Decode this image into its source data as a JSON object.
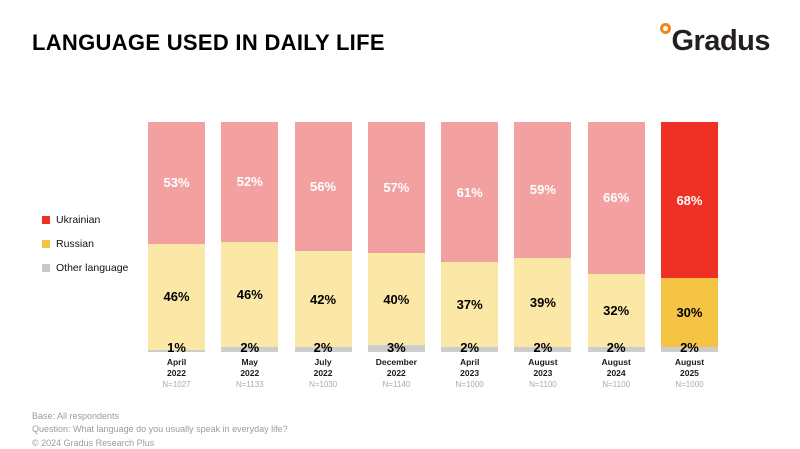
{
  "header": {
    "title": "LANGUAGE USED IN DAILY LIFE",
    "logo_text": "Gradus"
  },
  "legend": {
    "items": [
      {
        "label": "Ukrainian",
        "color": "#EE3124"
      },
      {
        "label": "Russian",
        "color": "#F6C444"
      },
      {
        "label": "Other language",
        "color": "#C8C8C8"
      }
    ]
  },
  "chart_data": {
    "type": "bar",
    "stacked": true,
    "unit": "%",
    "ylim": [
      0,
      100
    ],
    "grid": false,
    "legend_position": "left",
    "categories": [
      "April 2022",
      "May 2022",
      "July 2022",
      "December 2022",
      "April 2023",
      "August 2023",
      "August 2024",
      "August 2025"
    ],
    "sample_sizes": [
      "N=1027",
      "N=1133",
      "N=1030",
      "N=1140",
      "N=1000",
      "N=1100",
      "N=1100",
      "N=1000"
    ],
    "series": [
      {
        "name": "Ukrainian",
        "values": [
          53,
          52,
          56,
          57,
          61,
          59,
          66,
          68
        ]
      },
      {
        "name": "Russian",
        "values": [
          46,
          46,
          42,
          40,
          37,
          39,
          32,
          30
        ]
      },
      {
        "name": "Other language",
        "values": [
          1,
          2,
          2,
          3,
          2,
          2,
          2,
          2
        ]
      }
    ],
    "highlight_index": 7,
    "colors": {
      "ukrainian_muted": "#F2A0A0",
      "ukrainian_highlight": "#EE3124",
      "russian_muted": "#FBE8A6",
      "russian_highlight": "#F6C444",
      "other": "#CDCDCD",
      "ukrainian_label": "#FFFFFF",
      "russian_label": "#000000"
    }
  },
  "footer": {
    "base": "Base: All respondents",
    "question": "Question: What language do you usually speak in everyday life?",
    "copyright": "© 2024 Gradus Research Plus"
  }
}
